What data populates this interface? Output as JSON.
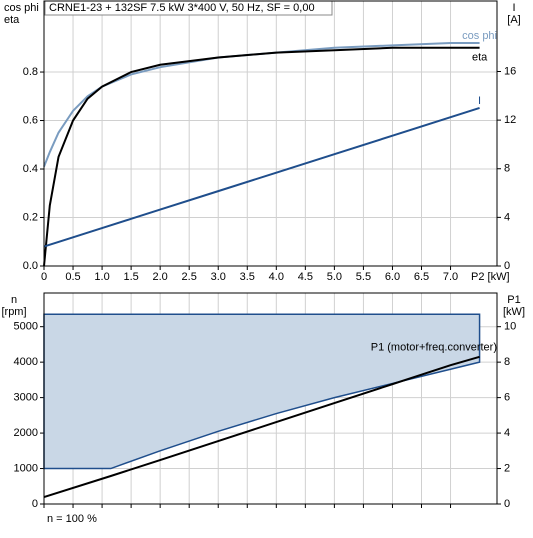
{
  "chart_data": [
    {
      "type": "line",
      "title": "CRNE1-23 + 132SF   7.5 kW   3*400 V, 50 Hz, SF = 0,00",
      "ylabel": [
        "cos phi",
        "eta"
      ],
      "y2label": [
        "I",
        "[A]"
      ],
      "xlabel": "P2 [kW]",
      "xlim": [
        0,
        7.8
      ],
      "ylim": [
        0,
        1.093
      ],
      "y2lim": [
        0,
        21.8
      ],
      "xticks": [
        0,
        0.5,
        {
          "value": 1,
          "label": "1.0"
        },
        1.5,
        {
          "value": 2,
          "label": "2.0"
        },
        2.5,
        {
          "value": 3,
          "label": "3.0"
        },
        3.5,
        {
          "value": 4,
          "label": "4.0"
        },
        4.5,
        {
          "value": 5,
          "label": "5.0"
        },
        5.5,
        {
          "value": 6,
          "label": "6.0"
        },
        6.5,
        {
          "value": 7,
          "label": "7.0"
        }
      ],
      "yticks": [
        {
          "value": 0,
          "label": "0.0"
        },
        0.2,
        0.4,
        0.6,
        0.8
      ],
      "y2ticks": [
        0,
        4,
        8,
        12,
        16
      ],
      "grid": true,
      "x": [
        0,
        0.1,
        0.25,
        0.5,
        0.75,
        1,
        1.5,
        2,
        3,
        4,
        5,
        6,
        7,
        7.5
      ],
      "series": [
        {
          "name": "cos phi",
          "color": "#7a9cc0",
          "values": [
            0.41,
            0.47,
            0.55,
            0.64,
            0.7,
            0.74,
            0.79,
            0.82,
            0.86,
            0.88,
            0.9,
            0.91,
            0.92,
            0.92
          ]
        },
        {
          "name": "eta",
          "color": "#000000",
          "values": [
            0,
            0.25,
            0.45,
            0.6,
            0.69,
            0.74,
            0.8,
            0.83,
            0.86,
            0.88,
            0.89,
            0.9,
            0.9,
            0.9
          ]
        },
        {
          "name": "I",
          "color": "#1f4e8c",
          "axis": "y2",
          "values": [
            1.6,
            1.75,
            1.98,
            2.36,
            2.74,
            3.12,
            3.88,
            4.64,
            6.16,
            7.68,
            9.2,
            10.72,
            12.24,
            13.0
          ]
        }
      ]
    },
    {
      "type": "area",
      "ylabel": [
        "n",
        "[rpm]"
      ],
      "y2label": [
        "P1",
        "[kW]"
      ],
      "note": "n = 100 %",
      "xlim": [
        0,
        7.8
      ],
      "ylim": [
        0,
        5950
      ],
      "y2lim": [
        0,
        11.9
      ],
      "yticks": [
        0,
        1000,
        2000,
        3000,
        4000,
        5000
      ],
      "y2ticks": [
        0,
        2,
        4,
        6,
        8,
        10
      ],
      "grid": true,
      "x": [
        0,
        1.15,
        2,
        3,
        4,
        5,
        6,
        7,
        7.5
      ],
      "area": {
        "color": "#c9d7e6",
        "edge": "#1f4e8c",
        "upper": [
          5350,
          5350,
          5350,
          5350,
          5350,
          5350,
          5350,
          5350,
          5350
        ],
        "lower": [
          1000,
          1000,
          1500,
          2050,
          2550,
          3000,
          3400,
          3800,
          4000
        ]
      },
      "series": [
        {
          "name": "P1 (motor+freq.converter)",
          "color": "#000000",
          "axis": "y2",
          "values": [
            0.39,
            1.58,
            2.48,
            3.55,
            4.62,
            5.69,
            6.76,
            7.83,
            8.3
          ]
        }
      ]
    }
  ]
}
